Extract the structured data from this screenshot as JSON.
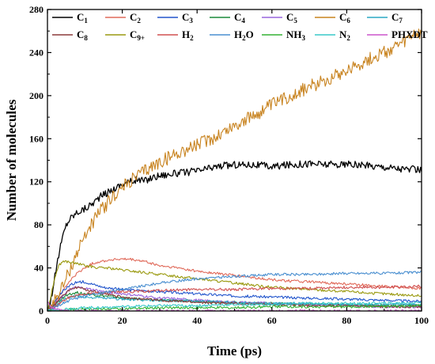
{
  "chart_data": {
    "type": "line",
    "title": "",
    "xlabel": "Time (ps)",
    "ylabel": "Number of molecules",
    "xlim": [
      0,
      100
    ],
    "ylim": [
      0,
      280
    ],
    "xticks": [
      0,
      20,
      40,
      60,
      80,
      100
    ],
    "yticks": [
      0,
      40,
      80,
      120,
      160,
      200,
      240,
      280
    ],
    "xtick_labels": [
      "0",
      "20",
      "40",
      "60",
      "80",
      "100"
    ],
    "ytick_labels": [
      "0",
      "40",
      "80",
      "120",
      "160",
      "200",
      "240",
      "280"
    ],
    "grid": false,
    "legend_position": "top",
    "series": [
      {
        "name": "C1",
        "label_base": "C",
        "label_sub": "1",
        "color": "#000000",
        "x": [
          0,
          1,
          2,
          3,
          4,
          5,
          6,
          8,
          10,
          12,
          14,
          16,
          18,
          20,
          22,
          24,
          26,
          28,
          30,
          35,
          40,
          45,
          50,
          55,
          60,
          65,
          70,
          75,
          80,
          85,
          90,
          95,
          100
        ],
        "y": [
          0,
          12,
          32,
          52,
          68,
          80,
          86,
          92,
          95,
          100,
          106,
          110,
          114,
          118,
          120,
          122,
          121,
          124,
          126,
          128,
          130,
          134,
          136,
          136,
          134,
          136,
          137,
          136,
          136,
          135,
          134,
          132,
          131
        ]
      },
      {
        "name": "C2",
        "label_base": "C",
        "label_sub": "2",
        "color": "#e06a5a",
        "x": [
          0,
          2,
          4,
          6,
          8,
          10,
          12,
          14,
          16,
          18,
          20,
          22,
          24,
          26,
          28,
          30,
          35,
          40,
          45,
          50,
          55,
          60,
          65,
          70,
          75,
          80,
          85,
          90,
          95,
          100
        ],
        "y": [
          0,
          8,
          18,
          28,
          35,
          40,
          44,
          46,
          47,
          48,
          48,
          48,
          47,
          46,
          44,
          42,
          40,
          37,
          35,
          33,
          31,
          29,
          28,
          27,
          26,
          25,
          24,
          23,
          22,
          21
        ]
      },
      {
        "name": "C3",
        "label_base": "C",
        "label_sub": "3",
        "color": "#2255cc",
        "x": [
          0,
          2,
          4,
          6,
          8,
          10,
          12,
          15,
          20,
          25,
          30,
          40,
          50,
          60,
          70,
          80,
          90,
          100
        ],
        "y": [
          0,
          8,
          18,
          24,
          27,
          27,
          25,
          22,
          20,
          19,
          18,
          16,
          14,
          13,
          12,
          11,
          10,
          9
        ]
      },
      {
        "name": "C4",
        "label_base": "C",
        "label_sub": "4",
        "color": "#1a8a3a",
        "x": [
          0,
          2,
          4,
          6,
          8,
          10,
          15,
          20,
          25,
          30,
          40,
          50,
          60,
          70,
          80,
          90,
          100
        ],
        "y": [
          0,
          6,
          12,
          16,
          17,
          16,
          14,
          12,
          11,
          10,
          9,
          8,
          7,
          6,
          6,
          5,
          5
        ]
      },
      {
        "name": "C5",
        "label_base": "C",
        "label_sub": "5",
        "color": "#9966dd",
        "x": [
          0,
          2,
          4,
          6,
          8,
          10,
          15,
          20,
          25,
          30,
          40,
          50,
          60,
          70,
          80,
          90,
          100
        ],
        "y": [
          0,
          6,
          14,
          20,
          22,
          21,
          18,
          16,
          14,
          12,
          10,
          8,
          7,
          6,
          5,
          4,
          4
        ]
      },
      {
        "name": "C6",
        "label_base": "C",
        "label_sub": "6",
        "color": "#c8831f",
        "x": [
          0,
          2,
          4,
          6,
          8,
          10,
          12,
          14,
          16,
          18,
          20,
          22,
          24,
          26,
          28,
          30,
          35,
          40,
          45,
          50,
          55,
          60,
          65,
          70,
          75,
          80,
          85,
          90,
          95,
          98,
          100
        ],
        "y": [
          0,
          10,
          22,
          38,
          55,
          70,
          82,
          92,
          100,
          108,
          114,
          120,
          125,
          130,
          134,
          138,
          147,
          154,
          162,
          172,
          181,
          191,
          200,
          208,
          216,
          224,
          232,
          240,
          248,
          257,
          256
        ]
      },
      {
        "name": "C7",
        "label_base": "C",
        "label_sub": "7",
        "color": "#2aa8c4",
        "x": [
          0,
          2,
          4,
          6,
          8,
          10,
          15,
          20,
          25,
          30,
          40,
          50,
          60,
          70,
          80,
          90,
          100
        ],
        "y": [
          0,
          5,
          10,
          13,
          14,
          13,
          12,
          11,
          10,
          10,
          9,
          8,
          7,
          7,
          6,
          6,
          6
        ]
      },
      {
        "name": "C8",
        "label_base": "C",
        "label_sub": "8",
        "color": "#8b3a3a",
        "x": [
          0,
          2,
          4,
          6,
          8,
          10,
          15,
          20,
          25,
          30,
          40,
          50,
          60,
          70,
          80,
          90,
          100
        ],
        "y": [
          0,
          6,
          14,
          20,
          22,
          20,
          16,
          13,
          11,
          10,
          8,
          7,
          6,
          5,
          5,
          4,
          4
        ]
      },
      {
        "name": "C9+",
        "label_base": "C",
        "label_sub": "9+",
        "color": "#9a9a10",
        "x": [
          0,
          1,
          2,
          3,
          4,
          5,
          6,
          8,
          10,
          12,
          14,
          16,
          18,
          20,
          25,
          30,
          35,
          40,
          45,
          50,
          55,
          60,
          65,
          70,
          75,
          80,
          85,
          90,
          95,
          100
        ],
        "y": [
          0,
          15,
          32,
          42,
          46,
          46,
          45,
          44,
          42,
          41,
          40,
          40,
          39,
          38,
          36,
          34,
          32,
          30,
          28,
          26,
          24,
          22,
          21,
          20,
          19,
          18,
          17,
          16,
          15,
          14
        ]
      },
      {
        "name": "H2",
        "label_base": "H",
        "label_sub": "2",
        "color": "#d05050",
        "x": [
          0,
          2,
          4,
          6,
          8,
          10,
          15,
          20,
          25,
          30,
          40,
          50,
          60,
          70,
          80,
          90,
          100
        ],
        "y": [
          0,
          4,
          9,
          13,
          15,
          16,
          17,
          18,
          18,
          19,
          20,
          20,
          21,
          21,
          22,
          22,
          23
        ]
      },
      {
        "name": "H2O",
        "label_base": "H",
        "label_sub": "2",
        "label_tail": "O",
        "color": "#4a8fd0",
        "x": [
          0,
          2,
          4,
          6,
          8,
          10,
          15,
          20,
          25,
          30,
          35,
          40,
          45,
          50,
          55,
          60,
          70,
          80,
          90,
          100
        ],
        "y": [
          0,
          3,
          7,
          10,
          12,
          14,
          17,
          20,
          23,
          26,
          28,
          30,
          31,
          32,
          33,
          34,
          34,
          35,
          35,
          36
        ]
      },
      {
        "name": "NH3",
        "label_base": "NH",
        "label_sub": "3",
        "color": "#33b233",
        "x": [
          0,
          5,
          10,
          20,
          30,
          40,
          50,
          60,
          70,
          80,
          90,
          100
        ],
        "y": [
          0,
          1,
          2,
          2,
          3,
          3,
          3,
          4,
          4,
          4,
          4,
          5
        ]
      },
      {
        "name": "N2",
        "label_base": "N",
        "label_sub": "2",
        "color": "#38c8c8",
        "x": [
          0,
          5,
          10,
          20,
          30,
          40,
          50,
          60,
          70,
          80,
          90,
          100
        ],
        "y": [
          0,
          2,
          3,
          4,
          5,
          5,
          6,
          6,
          7,
          7,
          7,
          8
        ]
      },
      {
        "name": "PHXDT",
        "label_base": "PHXDT",
        "label_sub": "",
        "color": "#cc55cc",
        "x": [
          0,
          0.5,
          1,
          2,
          3,
          4,
          5,
          6,
          8,
          10,
          15,
          20,
          30,
          40,
          50,
          60,
          70,
          80,
          90,
          100
        ],
        "y": [
          8,
          6,
          4,
          2,
          1,
          0,
          0,
          0,
          0,
          0,
          0,
          0,
          0,
          0,
          0,
          0,
          0,
          0,
          0,
          0
        ]
      }
    ]
  }
}
